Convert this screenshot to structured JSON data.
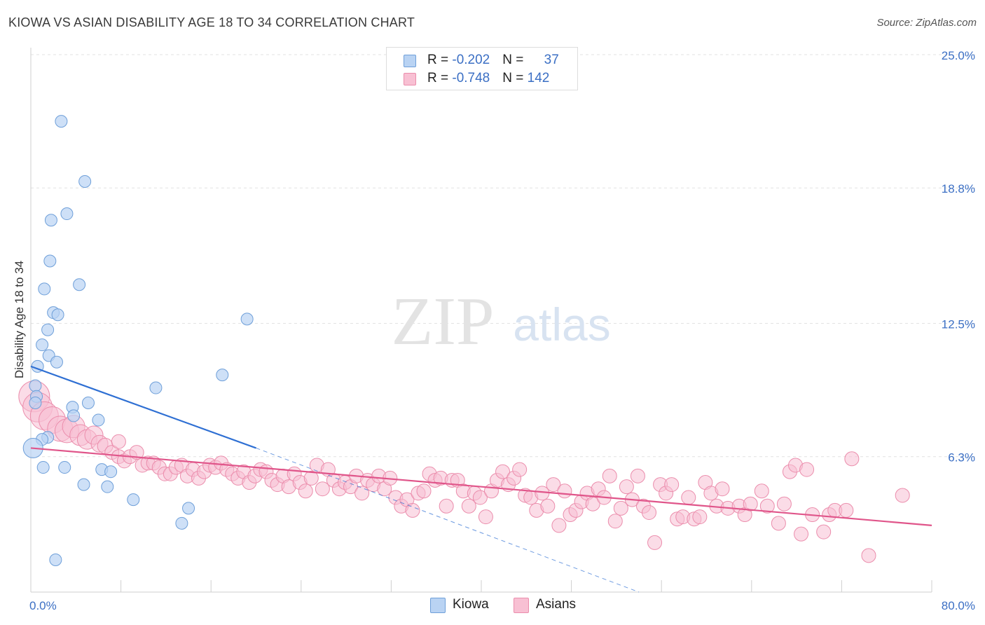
{
  "header": {
    "title": "KIOWA VS ASIAN DISABILITY AGE 18 TO 34 CORRELATION CHART",
    "source": "Source: ZipAtlas.com"
  },
  "watermark": {
    "zip": "ZIP",
    "atlas": "atlas"
  },
  "legend": {
    "rows": [
      {
        "r_label": "R = ",
        "r_value": "-0.202",
        "n_label": "N = ",
        "n_value": "37"
      },
      {
        "r_label": "R = ",
        "r_value": "-0.748",
        "n_label": "N = ",
        "n_value": "142"
      }
    ]
  },
  "colors": {
    "kiowa_fill": "#b9d3f3",
    "kiowa_stroke": "#6e9fd9",
    "kiowa_line": "#2e6fd3",
    "asians_fill": "#f8c0d3",
    "asians_stroke": "#eb8dac",
    "asians_line": "#e0558a",
    "tick_label": "#3b6fc4",
    "grid": "#e2e2e2"
  },
  "chart_data": {
    "type": "scatter",
    "title": "KIOWA VS ASIAN DISABILITY AGE 18 TO 34 CORRELATION CHART",
    "xlabel": "",
    "ylabel": "Disability Age 18 to 34",
    "xlim": [
      0,
      80
    ],
    "ylim": [
      0,
      25
    ],
    "x_tick_labels": [
      "0.0%",
      "80.0%"
    ],
    "y_ticks": [
      6.3,
      12.5,
      18.8,
      25.0
    ],
    "y_tick_labels": [
      "6.3%",
      "12.5%",
      "18.8%",
      "25.0%"
    ],
    "grid": "horizontal dashed",
    "legend_position": "top-center and bottom",
    "series": [
      {
        "name": "Kiowa",
        "r": -0.202,
        "n": 37,
        "trend": {
          "x": [
            0,
            20
          ],
          "y": [
            10.5,
            6.7
          ],
          "dashed_extension_to": [
            54,
            0
          ]
        },
        "points": [
          [
            2.7,
            21.9
          ],
          [
            4.8,
            19.1
          ],
          [
            3.2,
            17.6
          ],
          [
            1.8,
            17.3
          ],
          [
            1.7,
            15.4
          ],
          [
            4.3,
            14.3
          ],
          [
            1.2,
            14.1
          ],
          [
            2.0,
            13.0
          ],
          [
            2.4,
            12.9
          ],
          [
            19.2,
            12.7
          ],
          [
            1.5,
            12.2
          ],
          [
            1.0,
            11.5
          ],
          [
            1.6,
            11.0
          ],
          [
            2.3,
            10.7
          ],
          [
            0.6,
            10.5
          ],
          [
            11.1,
            9.5
          ],
          [
            17.0,
            10.1
          ],
          [
            0.4,
            9.6
          ],
          [
            0.5,
            9.1
          ],
          [
            5.1,
            8.8
          ],
          [
            3.7,
            8.6
          ],
          [
            0.4,
            8.8
          ],
          [
            3.8,
            8.2
          ],
          [
            6.0,
            8.0
          ],
          [
            1.5,
            7.2
          ],
          [
            1.0,
            7.1
          ],
          [
            0.2,
            6.7
          ],
          [
            1.1,
            5.8
          ],
          [
            3.0,
            5.8
          ],
          [
            6.3,
            5.7
          ],
          [
            7.1,
            5.6
          ],
          [
            4.7,
            5.0
          ],
          [
            6.8,
            4.9
          ],
          [
            9.1,
            4.3
          ],
          [
            14.0,
            3.9
          ],
          [
            13.4,
            3.2
          ],
          [
            2.2,
            1.5
          ]
        ]
      },
      {
        "name": "Asians",
        "r": -0.748,
        "n": 142,
        "trend": {
          "x": [
            0,
            80
          ],
          "y": [
            6.7,
            3.1
          ]
        },
        "points": [
          [
            0.3,
            9.1
          ],
          [
            0.6,
            8.6
          ],
          [
            1.2,
            8.2
          ],
          [
            1.9,
            8.0
          ],
          [
            2.6,
            7.6
          ],
          [
            3.2,
            7.5
          ],
          [
            3.8,
            7.7
          ],
          [
            4.4,
            7.3
          ],
          [
            5.0,
            7.1
          ],
          [
            5.6,
            7.3
          ],
          [
            6.1,
            6.9
          ],
          [
            6.6,
            6.8
          ],
          [
            7.2,
            6.5
          ],
          [
            7.8,
            6.3
          ],
          [
            8.3,
            6.1
          ],
          [
            7.8,
            7.0
          ],
          [
            8.8,
            6.3
          ],
          [
            9.4,
            6.5
          ],
          [
            9.9,
            5.9
          ],
          [
            10.4,
            6.0
          ],
          [
            10.9,
            6.0
          ],
          [
            11.4,
            5.8
          ],
          [
            11.9,
            5.5
          ],
          [
            12.4,
            5.5
          ],
          [
            12.9,
            5.8
          ],
          [
            13.4,
            5.9
          ],
          [
            13.9,
            5.4
          ],
          [
            14.4,
            5.7
          ],
          [
            14.9,
            5.3
          ],
          [
            15.4,
            5.6
          ],
          [
            15.9,
            5.9
          ],
          [
            16.4,
            5.8
          ],
          [
            16.9,
            6.0
          ],
          [
            17.4,
            5.7
          ],
          [
            17.9,
            5.5
          ],
          [
            18.4,
            5.3
          ],
          [
            18.9,
            5.6
          ],
          [
            19.4,
            5.1
          ],
          [
            19.9,
            5.4
          ],
          [
            20.4,
            5.7
          ],
          [
            20.9,
            5.6
          ],
          [
            21.4,
            5.2
          ],
          [
            21.9,
            5.0
          ],
          [
            22.4,
            5.4
          ],
          [
            22.9,
            4.9
          ],
          [
            23.4,
            5.5
          ],
          [
            23.9,
            5.1
          ],
          [
            24.4,
            4.7
          ],
          [
            24.9,
            5.3
          ],
          [
            25.4,
            5.9
          ],
          [
            25.9,
            4.8
          ],
          [
            26.4,
            5.7
          ],
          [
            26.9,
            5.2
          ],
          [
            27.4,
            4.8
          ],
          [
            27.9,
            5.1
          ],
          [
            28.4,
            4.9
          ],
          [
            28.9,
            5.4
          ],
          [
            29.4,
            4.6
          ],
          [
            29.9,
            5.2
          ],
          [
            30.4,
            5.0
          ],
          [
            30.9,
            5.4
          ],
          [
            31.4,
            4.8
          ],
          [
            31.9,
            5.3
          ],
          [
            32.4,
            4.4
          ],
          [
            32.9,
            4.0
          ],
          [
            33.4,
            4.3
          ],
          [
            33.9,
            3.8
          ],
          [
            34.4,
            4.6
          ],
          [
            34.9,
            4.7
          ],
          [
            35.4,
            5.5
          ],
          [
            35.9,
            5.2
          ],
          [
            36.4,
            5.3
          ],
          [
            36.9,
            4.0
          ],
          [
            37.4,
            5.2
          ],
          [
            37.9,
            5.2
          ],
          [
            38.4,
            4.7
          ],
          [
            38.9,
            4.0
          ],
          [
            39.4,
            4.6
          ],
          [
            39.9,
            4.4
          ],
          [
            40.4,
            3.5
          ],
          [
            40.9,
            4.7
          ],
          [
            41.4,
            5.2
          ],
          [
            41.9,
            5.6
          ],
          [
            42.4,
            5.0
          ],
          [
            42.9,
            5.3
          ],
          [
            43.4,
            5.7
          ],
          [
            43.9,
            4.5
          ],
          [
            44.4,
            4.4
          ],
          [
            44.9,
            3.8
          ],
          [
            45.4,
            4.6
          ],
          [
            45.9,
            4.0
          ],
          [
            46.4,
            5.0
          ],
          [
            46.9,
            3.1
          ],
          [
            47.4,
            4.7
          ],
          [
            47.9,
            3.6
          ],
          [
            48.4,
            3.8
          ],
          [
            48.9,
            4.2
          ],
          [
            49.4,
            4.6
          ],
          [
            49.9,
            4.1
          ],
          [
            50.4,
            4.8
          ],
          [
            50.9,
            4.4
          ],
          [
            51.4,
            5.4
          ],
          [
            51.9,
            3.3
          ],
          [
            52.4,
            3.9
          ],
          [
            52.9,
            4.9
          ],
          [
            53.4,
            4.3
          ],
          [
            53.9,
            5.4
          ],
          [
            54.4,
            4.0
          ],
          [
            54.9,
            3.7
          ],
          [
            55.4,
            2.3
          ],
          [
            55.9,
            5.0
          ],
          [
            56.4,
            4.6
          ],
          [
            56.9,
            5.0
          ],
          [
            57.4,
            3.4
          ],
          [
            57.9,
            3.5
          ],
          [
            58.4,
            4.4
          ],
          [
            58.9,
            3.4
          ],
          [
            59.4,
            3.5
          ],
          [
            59.9,
            5.1
          ],
          [
            60.4,
            4.6
          ],
          [
            60.9,
            4.0
          ],
          [
            61.4,
            4.8
          ],
          [
            61.9,
            3.9
          ],
          [
            62.9,
            4.0
          ],
          [
            63.4,
            3.6
          ],
          [
            63.9,
            4.1
          ],
          [
            64.9,
            4.7
          ],
          [
            65.4,
            4.0
          ],
          [
            66.4,
            3.2
          ],
          [
            66.9,
            4.1
          ],
          [
            67.4,
            5.6
          ],
          [
            67.9,
            5.9
          ],
          [
            68.4,
            2.7
          ],
          [
            68.9,
            5.7
          ],
          [
            69.4,
            3.6
          ],
          [
            70.4,
            2.8
          ],
          [
            70.9,
            3.6
          ],
          [
            71.4,
            3.8
          ],
          [
            72.4,
            3.8
          ],
          [
            72.9,
            6.2
          ],
          [
            74.4,
            1.7
          ],
          [
            77.4,
            4.5
          ]
        ]
      }
    ]
  }
}
